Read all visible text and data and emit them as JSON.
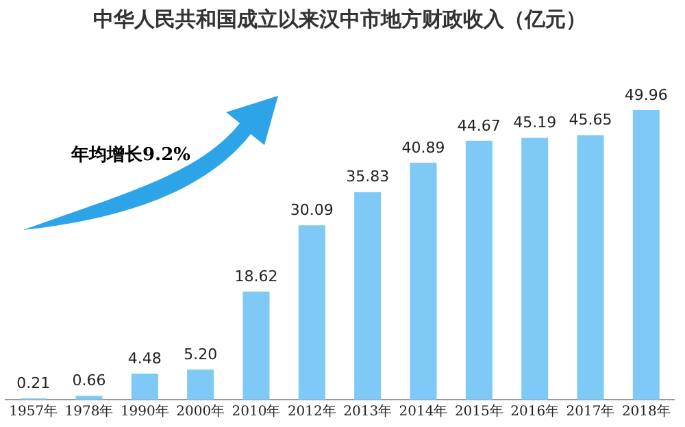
{
  "chart_data": {
    "type": "bar",
    "title": "中华人民共和国成立以来汉中市地方财政收入（亿元）",
    "categories": [
      "1957年",
      "1978年",
      "1990年",
      "2000年",
      "2010年",
      "2012年",
      "2013年",
      "2014年",
      "2015年",
      "2016年",
      "2017年",
      "2018年"
    ],
    "values": [
      0.21,
      0.66,
      4.48,
      5.2,
      18.62,
      30.09,
      35.83,
      40.89,
      44.67,
      45.19,
      45.65,
      49.96
    ],
    "value_labels": [
      "0.21",
      "0.66",
      "4.48",
      "5.20",
      "18.62",
      "30.09",
      "35.83",
      "40.89",
      "44.67",
      "45.19",
      "45.65",
      "49.96"
    ],
    "color": "#7fc9f7",
    "annotations": [
      "年均增长9.2%"
    ]
  }
}
